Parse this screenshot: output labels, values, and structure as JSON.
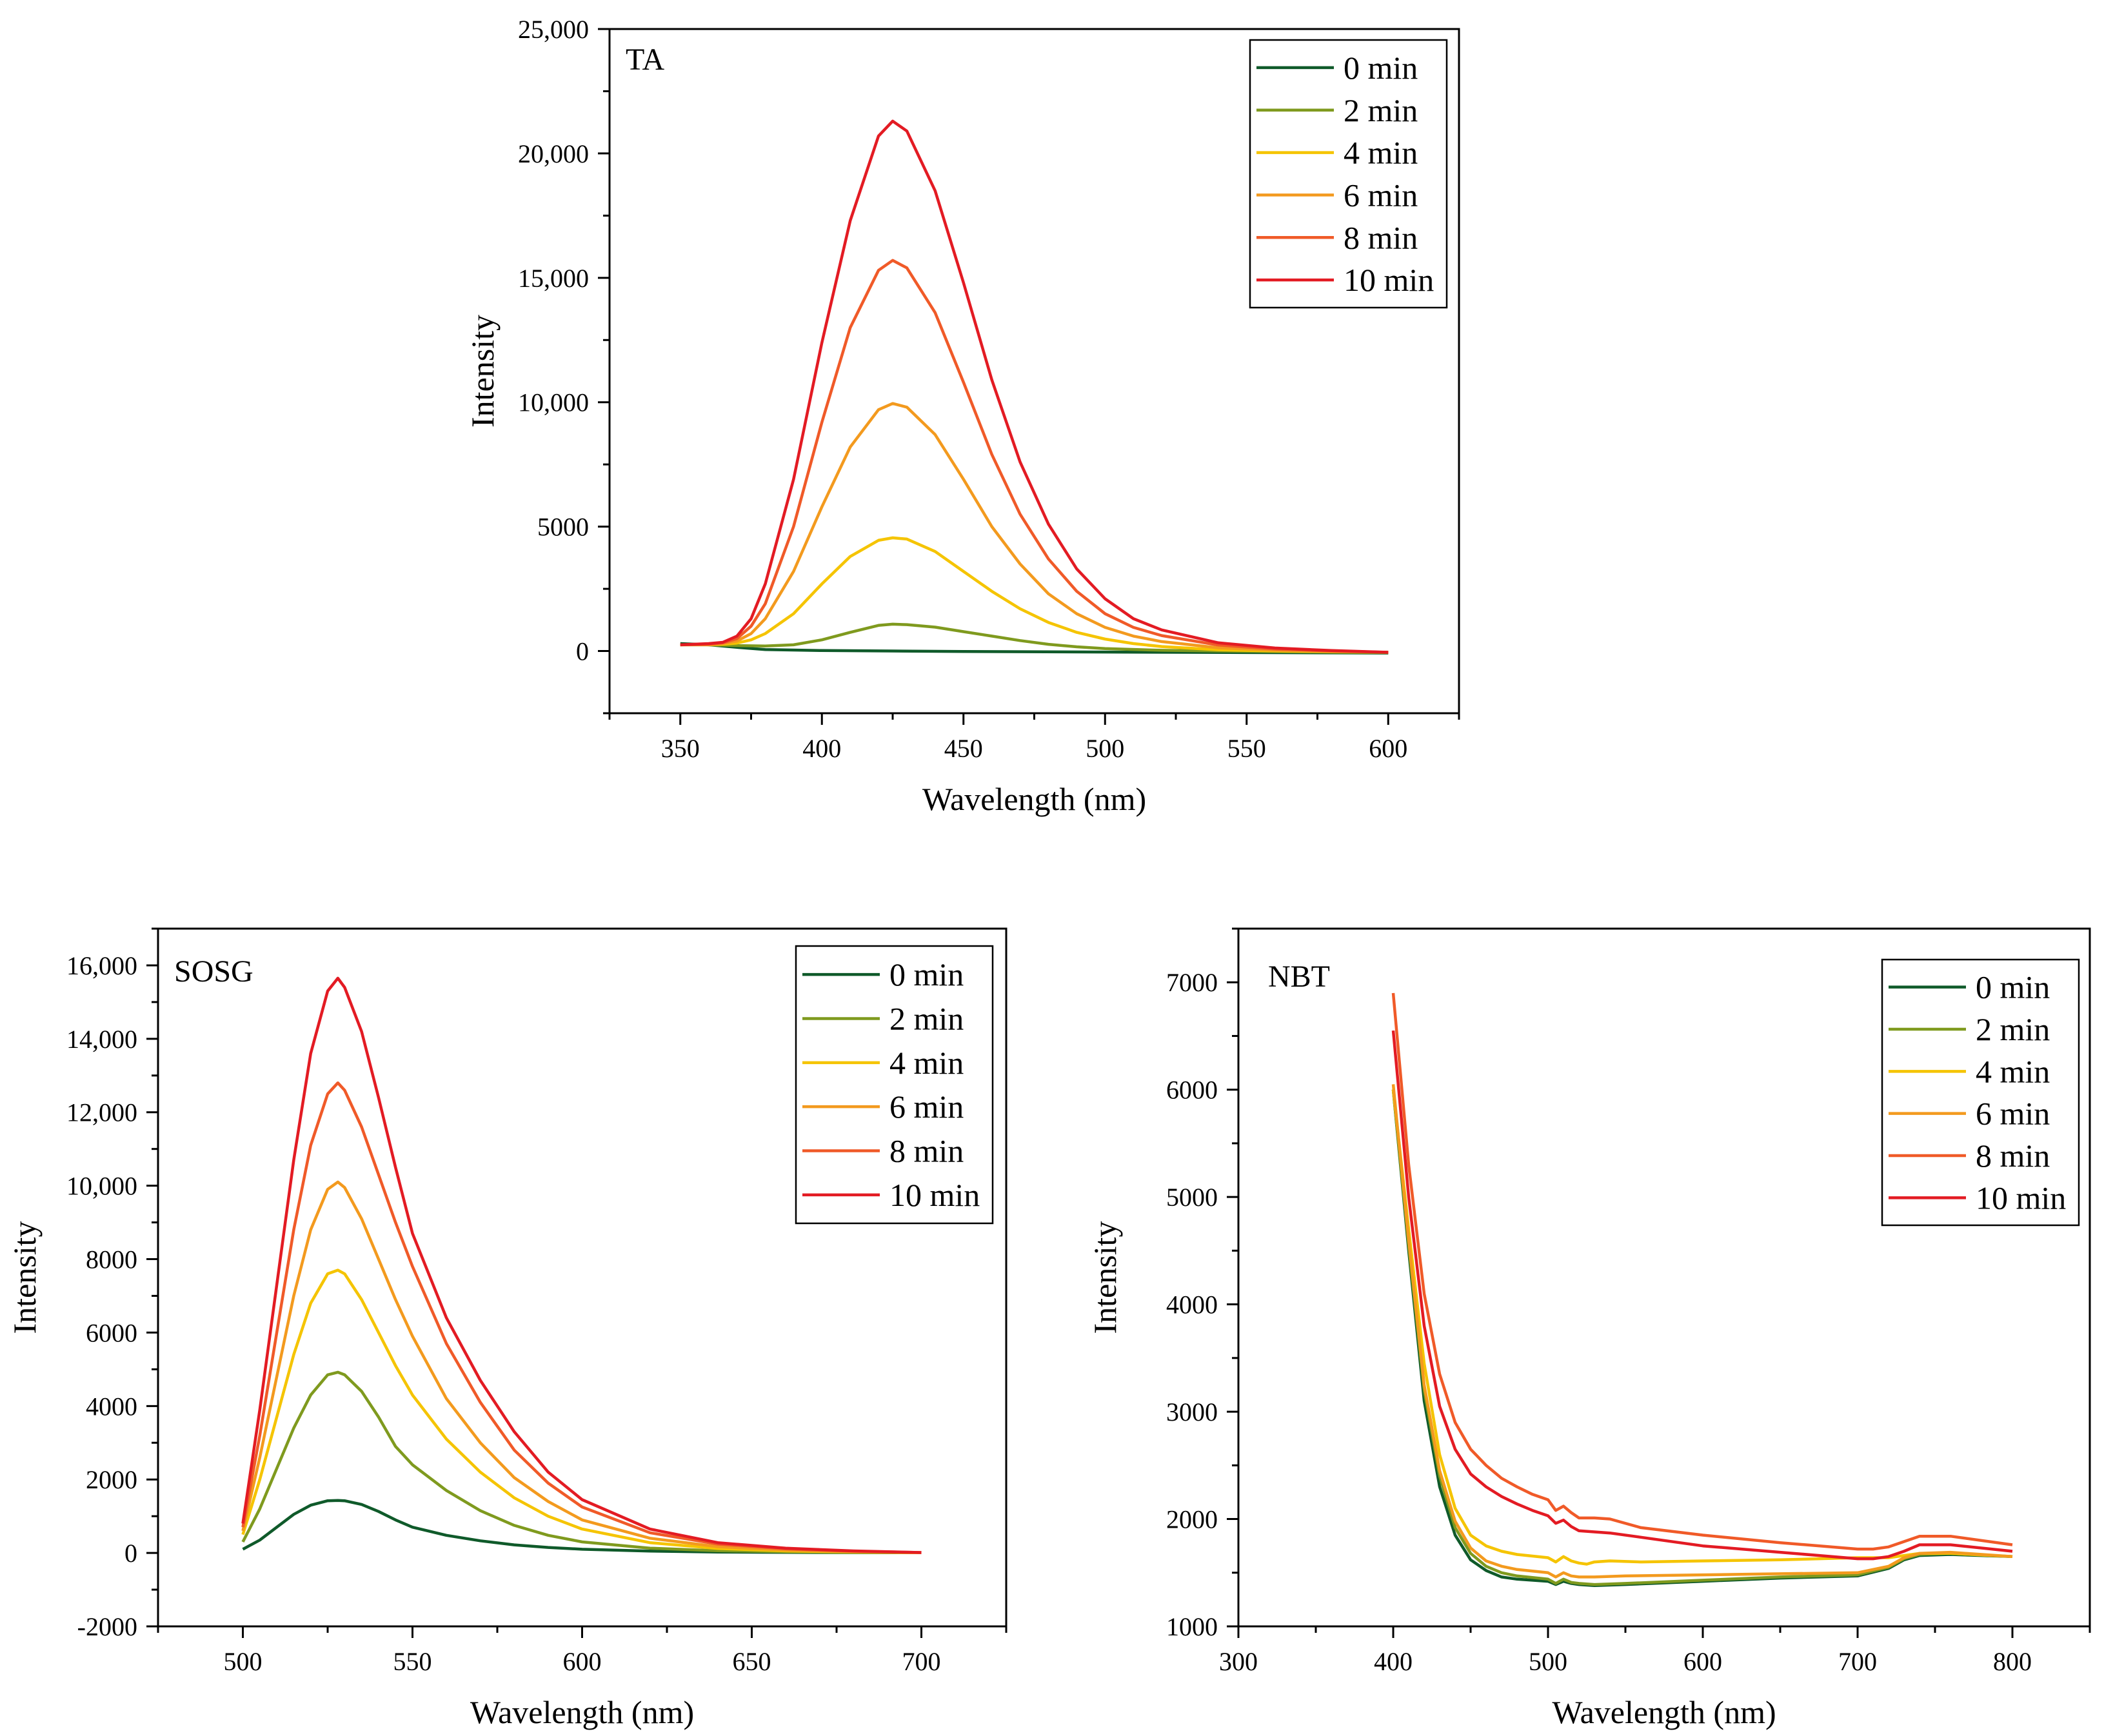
{
  "chart_data": [
    {
      "id": "ta",
      "type": "line",
      "panel_label": "TA",
      "xlabel": "Wavelength (nm)",
      "ylabel": "Intensity",
      "xlim": [
        325,
        625
      ],
      "ylim": [
        -2500,
        25000
      ],
      "xticks": [
        350,
        400,
        450,
        500,
        550,
        600
      ],
      "xtick_labels": [
        "350",
        "400",
        "450",
        "500",
        "550",
        "600"
      ],
      "yticks": [
        0,
        5000,
        10000,
        15000,
        20000,
        25000
      ],
      "ytick_labels": [
        "0",
        "5000",
        "10,000",
        "15,000",
        "20,000",
        "25,000"
      ],
      "legend_position": "top-right",
      "series": [
        {
          "name": "0 min",
          "color": "#0f5a2a",
          "x": [
            350,
            360,
            370,
            380,
            400,
            425,
            450,
            500,
            550,
            600
          ],
          "values": [
            300,
            250,
            150,
            60,
            20,
            0,
            -20,
            -40,
            -60,
            -80
          ]
        },
        {
          "name": "2 min",
          "color": "#7f9a1e",
          "x": [
            350,
            360,
            370,
            380,
            390,
            400,
            410,
            420,
            425,
            430,
            440,
            450,
            460,
            470,
            480,
            490,
            500,
            520,
            540,
            560,
            580,
            600
          ],
          "values": [
            250,
            250,
            220,
            200,
            250,
            450,
            750,
            1030,
            1080,
            1060,
            960,
            780,
            600,
            420,
            270,
            170,
            100,
            30,
            0,
            -20,
            -40,
            -60
          ]
        },
        {
          "name": "4 min",
          "color": "#f5c400",
          "x": [
            350,
            360,
            365,
            370,
            375,
            380,
            390,
            400,
            410,
            420,
            425,
            430,
            440,
            450,
            460,
            470,
            480,
            490,
            500,
            510,
            520,
            540,
            560,
            580,
            600
          ],
          "values": [
            250,
            250,
            270,
            320,
            450,
            700,
            1500,
            2700,
            3800,
            4450,
            4550,
            4500,
            4000,
            3200,
            2400,
            1700,
            1150,
            750,
            480,
            300,
            180,
            50,
            0,
            -30,
            -50
          ]
        },
        {
          "name": "6 min",
          "color": "#f39a1e",
          "x": [
            350,
            360,
            365,
            370,
            375,
            380,
            390,
            400,
            410,
            420,
            425,
            430,
            440,
            450,
            460,
            470,
            480,
            490,
            500,
            510,
            520,
            540,
            560,
            580,
            600
          ],
          "values": [
            250,
            260,
            300,
            400,
            700,
            1300,
            3200,
            5800,
            8200,
            9700,
            9950,
            9800,
            8700,
            6900,
            5000,
            3500,
            2300,
            1500,
            950,
            600,
            380,
            130,
            30,
            -20,
            -50
          ]
        },
        {
          "name": "8 min",
          "color": "#f05a28",
          "x": [
            350,
            360,
            365,
            370,
            375,
            380,
            390,
            400,
            410,
            420,
            425,
            430,
            440,
            450,
            460,
            470,
            480,
            490,
            500,
            510,
            520,
            540,
            560,
            580,
            600
          ],
          "values": [
            250,
            270,
            330,
            500,
            1000,
            1900,
            5000,
            9200,
            13000,
            15300,
            15700,
            15400,
            13600,
            10800,
            7900,
            5500,
            3700,
            2400,
            1500,
            950,
            620,
            240,
            80,
            0,
            -50
          ]
        },
        {
          "name": "10 min",
          "color": "#e31b23",
          "x": [
            350,
            360,
            365,
            370,
            375,
            380,
            390,
            400,
            410,
            420,
            425,
            430,
            440,
            450,
            460,
            470,
            480,
            490,
            500,
            510,
            520,
            540,
            560,
            580,
            600
          ],
          "values": [
            250,
            300,
            350,
            600,
            1300,
            2700,
            6900,
            12400,
            17300,
            20700,
            21300,
            20900,
            18500,
            14800,
            10900,
            7600,
            5100,
            3300,
            2100,
            1300,
            850,
            330,
            120,
            20,
            -50
          ]
        }
      ]
    },
    {
      "id": "sosg",
      "type": "line",
      "panel_label": "SOSG",
      "xlabel": "Wavelength (nm)",
      "ylabel": "Intensity",
      "xlim": [
        475,
        725
      ],
      "ylim": [
        -2000,
        17000
      ],
      "xticks": [
        500,
        550,
        600,
        650,
        700
      ],
      "xtick_labels": [
        "500",
        "550",
        "600",
        "650",
        "700"
      ],
      "yticks": [
        -2000,
        0,
        2000,
        4000,
        6000,
        8000,
        10000,
        12000,
        14000,
        16000
      ],
      "ytick_labels": [
        "-2000",
        "0",
        "2000",
        "4000",
        "6000",
        "8000",
        "10,000",
        "12,000",
        "14,000",
        "16,000"
      ],
      "legend_position": "top-right",
      "series": [
        {
          "name": "0 min",
          "color": "#0f5a2a",
          "x": [
            500,
            505,
            510,
            515,
            520,
            525,
            528,
            530,
            535,
            540,
            545,
            550,
            560,
            570,
            580,
            590,
            600,
            620,
            640,
            660,
            680,
            700
          ],
          "values": [
            100,
            350,
            700,
            1050,
            1300,
            1420,
            1430,
            1420,
            1320,
            1130,
            900,
            700,
            480,
            330,
            220,
            150,
            100,
            50,
            25,
            15,
            8,
            5
          ]
        },
        {
          "name": "2 min",
          "color": "#7f9a1e",
          "x": [
            500,
            505,
            510,
            515,
            520,
            525,
            528,
            530,
            535,
            540,
            545,
            550,
            560,
            570,
            580,
            590,
            600,
            620,
            640,
            660,
            680,
            700
          ],
          "values": [
            300,
            1200,
            2300,
            3400,
            4300,
            4850,
            4920,
            4850,
            4400,
            3700,
            2900,
            2400,
            1700,
            1150,
            750,
            480,
            300,
            130,
            60,
            30,
            15,
            5
          ]
        },
        {
          "name": "4 min",
          "color": "#f5c400",
          "x": [
            500,
            505,
            510,
            515,
            520,
            525,
            528,
            530,
            535,
            540,
            545,
            550,
            560,
            570,
            580,
            590,
            600,
            620,
            640,
            660,
            680,
            700
          ],
          "values": [
            500,
            2000,
            3700,
            5400,
            6800,
            7600,
            7700,
            7600,
            6900,
            6000,
            5100,
            4300,
            3100,
            2200,
            1500,
            1000,
            650,
            280,
            120,
            55,
            25,
            5
          ]
        },
        {
          "name": "6 min",
          "color": "#f39a1e",
          "x": [
            500,
            505,
            510,
            515,
            520,
            525,
            528,
            530,
            535,
            540,
            545,
            550,
            560,
            570,
            580,
            590,
            600,
            620,
            640,
            660,
            680,
            700
          ],
          "values": [
            600,
            2600,
            4800,
            7000,
            8800,
            9900,
            10100,
            9950,
            9100,
            8000,
            6900,
            5900,
            4200,
            3000,
            2050,
            1400,
            900,
            400,
            170,
            75,
            30,
            5
          ]
        },
        {
          "name": "8 min",
          "color": "#f05a28",
          "x": [
            500,
            505,
            510,
            515,
            520,
            525,
            528,
            530,
            535,
            540,
            545,
            550,
            560,
            570,
            580,
            590,
            600,
            620,
            640,
            660,
            680,
            700
          ],
          "values": [
            700,
            3200,
            6000,
            8800,
            11100,
            12500,
            12800,
            12600,
            11600,
            10300,
            9000,
            7800,
            5700,
            4100,
            2800,
            1900,
            1250,
            550,
            240,
            110,
            45,
            10
          ]
        },
        {
          "name": "10 min",
          "color": "#e31b23",
          "x": [
            500,
            505,
            510,
            515,
            520,
            525,
            528,
            530,
            535,
            540,
            545,
            550,
            560,
            570,
            580,
            590,
            600,
            620,
            640,
            660,
            680,
            700
          ],
          "values": [
            800,
            3900,
            7300,
            10700,
            13600,
            15300,
            15650,
            15400,
            14200,
            12400,
            10500,
            8700,
            6400,
            4700,
            3300,
            2200,
            1450,
            650,
            280,
            130,
            55,
            10
          ]
        }
      ]
    },
    {
      "id": "nbt",
      "type": "line",
      "panel_label": "NBT",
      "xlabel": "Wavelength (nm)",
      "ylabel": "Intensity",
      "xlim": [
        300,
        850
      ],
      "ylim": [
        1000,
        7500
      ],
      "xticks": [
        300,
        400,
        500,
        600,
        700,
        800
      ],
      "xtick_labels": [
        "300",
        "400",
        "500",
        "600",
        "700",
        "800"
      ],
      "yticks": [
        1000,
        2000,
        3000,
        4000,
        5000,
        6000,
        7000
      ],
      "ytick_labels": [
        "1000",
        "2000",
        "3000",
        "4000",
        "5000",
        "6000",
        "7000"
      ],
      "legend_position": "top-right",
      "series": [
        {
          "name": "0 min",
          "color": "#0f5a2a",
          "x": [
            400,
            410,
            420,
            430,
            440,
            450,
            460,
            470,
            480,
            500,
            505,
            510,
            515,
            520,
            530,
            550,
            600,
            650,
            700,
            720,
            730,
            740,
            760,
            800
          ],
          "values": [
            6000,
            4500,
            3100,
            2300,
            1850,
            1620,
            1520,
            1460,
            1440,
            1420,
            1390,
            1420,
            1400,
            1390,
            1380,
            1390,
            1420,
            1450,
            1470,
            1540,
            1620,
            1660,
            1670,
            1650
          ]
        },
        {
          "name": "2 min",
          "color": "#7f9a1e",
          "x": [
            400,
            410,
            420,
            430,
            440,
            450,
            460,
            470,
            480,
            500,
            505,
            510,
            515,
            520,
            530,
            550,
            600,
            650,
            700,
            720,
            730,
            740,
            760,
            800
          ],
          "values": [
            6000,
            4550,
            3200,
            2400,
            1920,
            1680,
            1560,
            1500,
            1470,
            1440,
            1400,
            1440,
            1410,
            1400,
            1390,
            1400,
            1430,
            1460,
            1480,
            1550,
            1630,
            1670,
            1680,
            1650
          ]
        },
        {
          "name": "4 min",
          "color": "#f5c400",
          "x": [
            400,
            410,
            420,
            430,
            440,
            450,
            460,
            470,
            480,
            500,
            505,
            510,
            515,
            520,
            525,
            530,
            540,
            560,
            600,
            650,
            700,
            720,
            730,
            740,
            760,
            800
          ],
          "values": [
            6000,
            4700,
            3450,
            2600,
            2100,
            1850,
            1750,
            1700,
            1670,
            1640,
            1600,
            1650,
            1610,
            1590,
            1580,
            1600,
            1610,
            1600,
            1610,
            1620,
            1640,
            1640,
            1660,
            1680,
            1680,
            1650
          ]
        },
        {
          "name": "6 min",
          "color": "#f39a1e",
          "x": [
            400,
            410,
            420,
            430,
            440,
            450,
            460,
            470,
            480,
            500,
            505,
            510,
            515,
            520,
            530,
            550,
            600,
            650,
            700,
            720,
            730,
            740,
            760,
            800
          ],
          "values": [
            6050,
            4600,
            3250,
            2450,
            1980,
            1730,
            1610,
            1560,
            1530,
            1500,
            1460,
            1500,
            1470,
            1460,
            1460,
            1470,
            1480,
            1490,
            1500,
            1560,
            1640,
            1680,
            1690,
            1650
          ]
        },
        {
          "name": "8 min",
          "color": "#f05a28",
          "x": [
            400,
            410,
            420,
            430,
            440,
            450,
            460,
            470,
            480,
            490,
            500,
            505,
            510,
            515,
            520,
            530,
            540,
            560,
            600,
            650,
            700,
            710,
            720,
            730,
            740,
            760,
            800
          ],
          "values": [
            6900,
            5300,
            4100,
            3350,
            2900,
            2650,
            2500,
            2380,
            2300,
            2230,
            2180,
            2080,
            2120,
            2060,
            2010,
            2010,
            2000,
            1920,
            1850,
            1780,
            1720,
            1720,
            1740,
            1790,
            1840,
            1840,
            1760
          ]
        },
        {
          "name": "10 min",
          "color": "#e31b23",
          "x": [
            400,
            410,
            420,
            430,
            440,
            450,
            460,
            470,
            480,
            490,
            500,
            505,
            510,
            515,
            520,
            530,
            540,
            560,
            600,
            650,
            700,
            710,
            720,
            730,
            740,
            760,
            800
          ],
          "values": [
            6550,
            5000,
            3800,
            3050,
            2650,
            2420,
            2300,
            2210,
            2140,
            2080,
            2030,
            1960,
            1990,
            1930,
            1890,
            1880,
            1870,
            1830,
            1750,
            1690,
            1630,
            1630,
            1650,
            1700,
            1760,
            1760,
            1700
          ]
        }
      ]
    }
  ]
}
